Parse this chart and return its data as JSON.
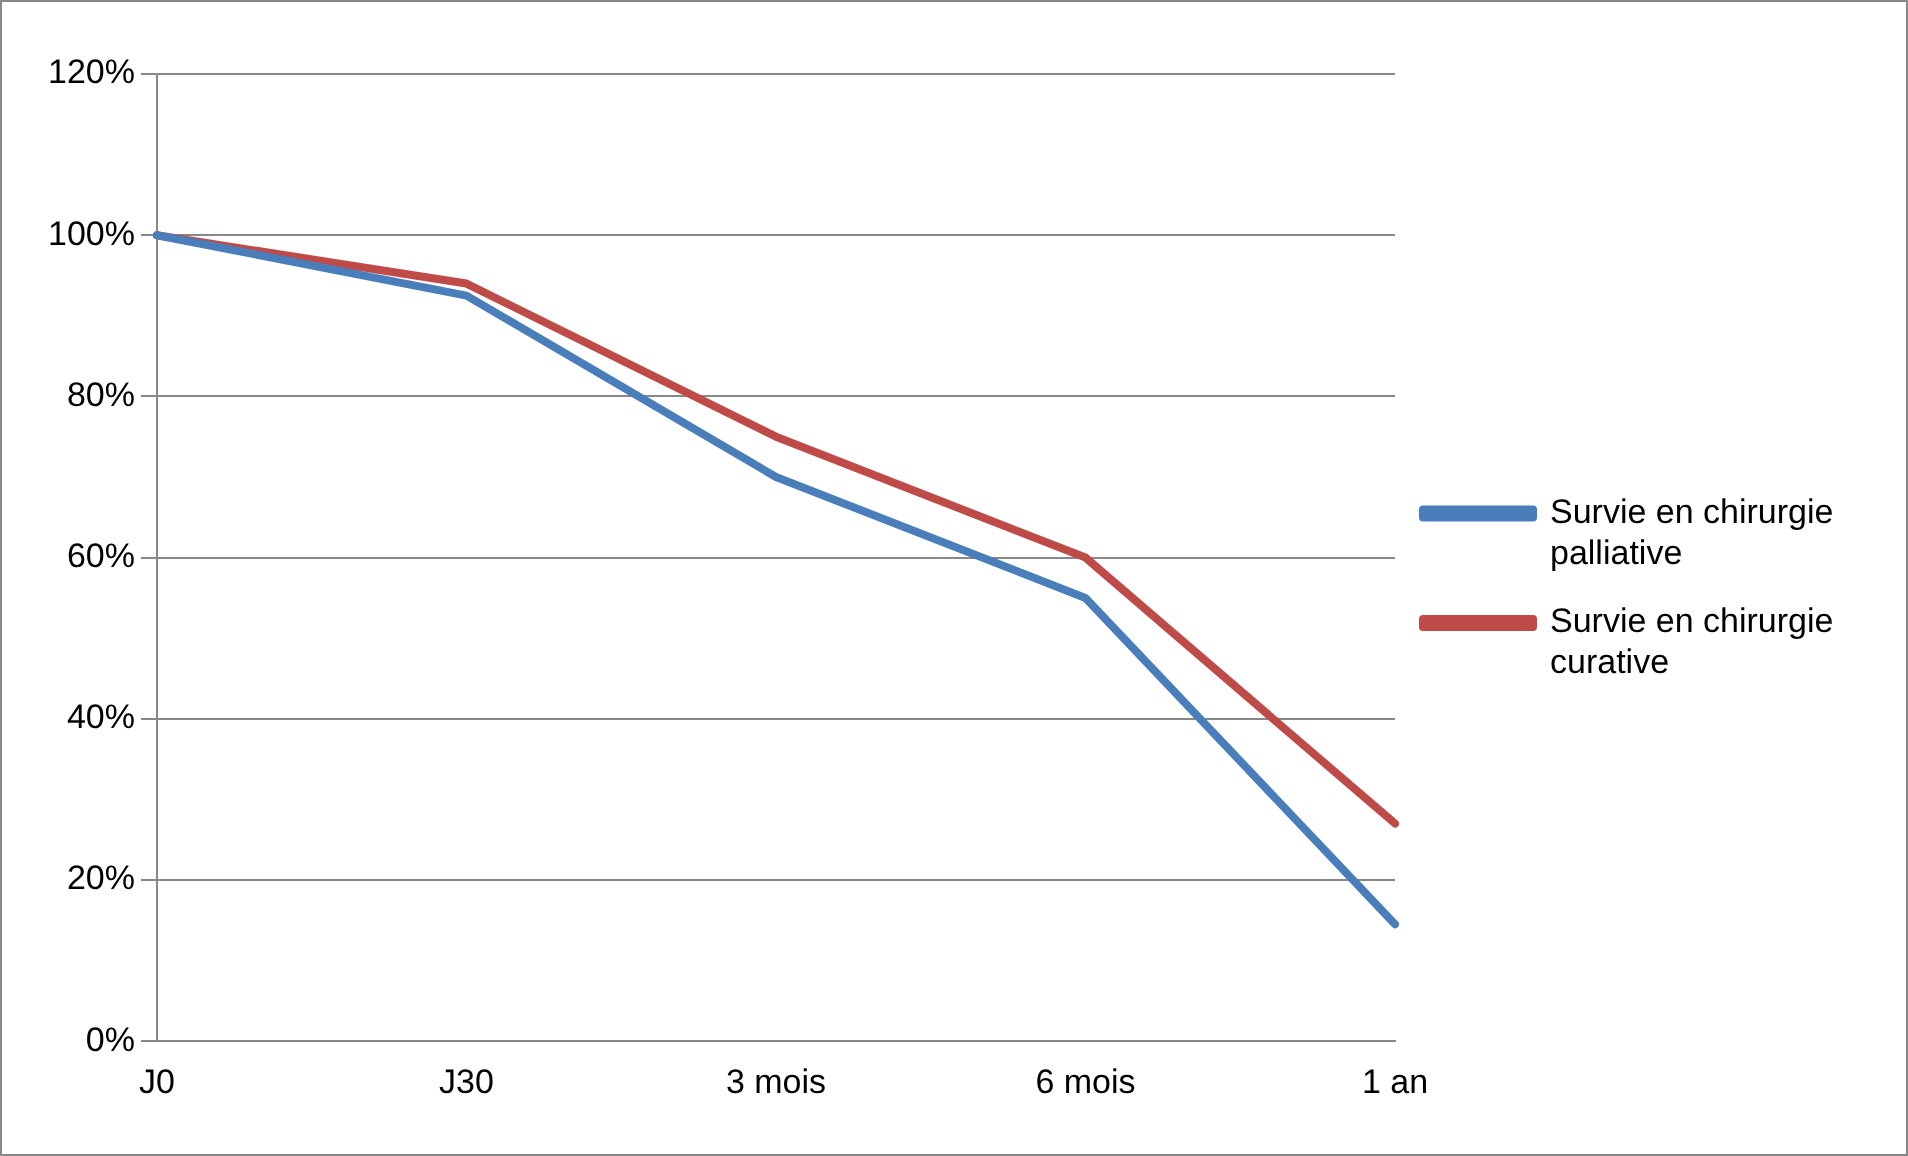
{
  "chart_data": {
    "type": "line",
    "categories": [
      "J0",
      "J30",
      "3 mois",
      "6 mois",
      "1 an"
    ],
    "series": [
      {
        "name": "Survie en chirurgie palliative",
        "color": "#4a7ebb",
        "values": [
          100,
          92.5,
          70,
          55,
          14.5
        ]
      },
      {
        "name": "Survie en chirurgie curative",
        "color": "#be4b48",
        "values": [
          100,
          94,
          75,
          60,
          27
        ]
      }
    ],
    "ylim": [
      0,
      120
    ],
    "yticks": [
      {
        "value": 0,
        "label": "0%"
      },
      {
        "value": 20,
        "label": "20%"
      },
      {
        "value": 40,
        "label": "40%"
      },
      {
        "value": 60,
        "label": "60%"
      },
      {
        "value": 80,
        "label": "80%"
      },
      {
        "value": 100,
        "label": "100%"
      },
      {
        "value": 120,
        "label": "120%"
      }
    ],
    "grid": "y",
    "legend": "right",
    "marker": "none",
    "line_style": "solid"
  }
}
